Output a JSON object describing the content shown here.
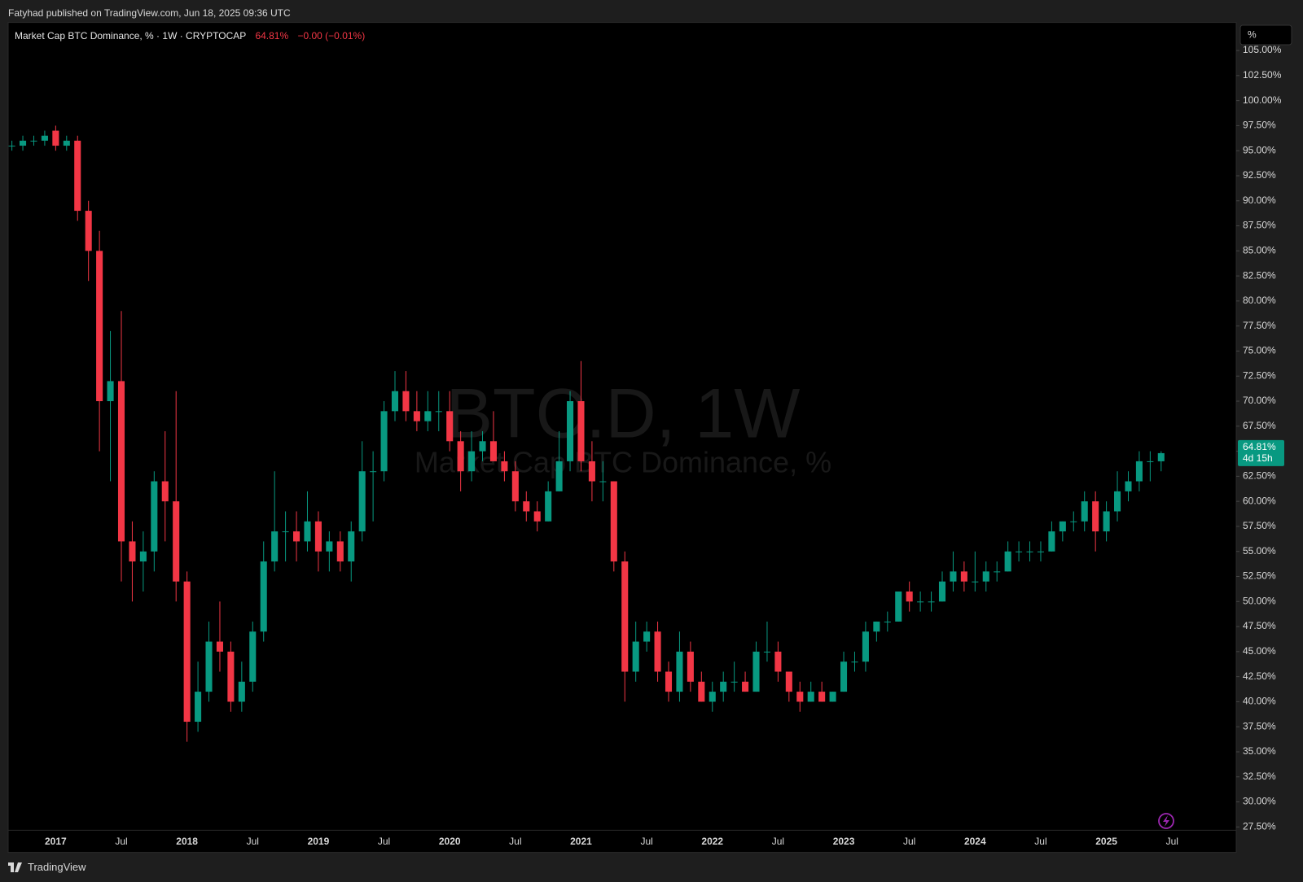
{
  "header": {
    "text": "Fatyhad published on TradingView.com, Jun 18, 2025 09:36 UTC"
  },
  "footer": {
    "brand": "TradingView"
  },
  "chart_data": {
    "type": "candlestick",
    "symbol_title": "Market Cap BTC Dominance, % · 1W · CRYPTOCAP",
    "change": "−0.00 (−0.01%)",
    "watermark": "BTC.D, 1W",
    "watermark_subtitle": "Market Cap BTC Dominance, %",
    "scale_mode": "%",
    "last_price": {
      "value": 64.81,
      "label": "64.81%"
    },
    "countdown": "4d 15h",
    "up_color": "#089981",
    "down_color": "#f23645",
    "grid": false,
    "categories": [
      null,
      null,
      null,
      null,
      "2017",
      null,
      null,
      null,
      null,
      null,
      "Jul",
      null,
      null,
      null,
      null,
      null,
      "2018",
      null,
      null,
      null,
      null,
      null,
      "Jul",
      null,
      null,
      null,
      null,
      null,
      "2019",
      null,
      null,
      null,
      null,
      null,
      "Jul",
      null,
      null,
      null,
      null,
      null,
      "2020",
      null,
      null,
      null,
      null,
      null,
      "Jul",
      null,
      null,
      null,
      null,
      null,
      "2021",
      null,
      null,
      null,
      null,
      null,
      "Jul",
      null,
      null,
      null,
      null,
      null,
      "2022",
      null,
      null,
      null,
      null,
      null,
      "Jul",
      null,
      null,
      null,
      null,
      null,
      "2023",
      null,
      null,
      null,
      null,
      null,
      "Jul",
      null,
      null,
      null,
      null,
      null,
      "2024",
      null,
      null,
      null,
      null,
      null,
      "Jul",
      null,
      null,
      null,
      null,
      null,
      "2025",
      null,
      null,
      null,
      null,
      null,
      "Jul"
    ],
    "open": [
      95.5,
      95.5,
      96,
      96,
      97,
      95.5,
      96,
      89,
      85,
      70,
      72,
      56,
      54,
      55,
      62,
      60,
      52,
      38,
      41,
      46,
      45,
      40,
      42,
      47,
      54,
      57,
      57,
      56,
      58,
      55,
      56,
      54,
      57,
      63,
      63,
      69,
      71,
      69,
      68,
      69,
      69,
      66,
      63,
      65,
      66,
      64,
      63,
      60,
      59,
      58,
      61,
      64,
      70,
      64,
      62,
      62,
      54,
      43,
      46,
      47,
      43,
      41,
      45,
      42,
      40,
      41,
      42,
      42,
      41,
      45,
      45,
      43,
      41,
      40,
      41,
      40,
      41,
      44,
      44,
      47,
      48,
      48,
      51,
      50,
      50,
      50,
      52,
      53,
      52,
      52,
      53,
      53,
      55,
      55,
      55,
      55,
      57,
      58,
      58,
      60,
      57,
      59,
      61,
      62,
      64,
      64,
      null
    ],
    "high": [
      96,
      96.5,
      96.5,
      97,
      97.5,
      96.5,
      96.5,
      90,
      87,
      77,
      79,
      58,
      57,
      63,
      67,
      71,
      53,
      44,
      48,
      50,
      46,
      44,
      48,
      56,
      63,
      59,
      59,
      61,
      59,
      57,
      57,
      58,
      66,
      65,
      70,
      73,
      73,
      71,
      71,
      71,
      71,
      67,
      67,
      67,
      69,
      65,
      64,
      61,
      60,
      62,
      67,
      71,
      74,
      66,
      64,
      62,
      55,
      48,
      48,
      48,
      44,
      47,
      46,
      43,
      42,
      43,
      44,
      43,
      46,
      48,
      46,
      43,
      42,
      42,
      42,
      41,
      45,
      45,
      48,
      48,
      49,
      51,
      52,
      51,
      51,
      53,
      55,
      54,
      55,
      54,
      54,
      56,
      56,
      56,
      56,
      58,
      58,
      59,
      61,
      61,
      60,
      63,
      63,
      65,
      65,
      65,
      null
    ],
    "low": [
      95,
      95,
      95.5,
      95.5,
      95,
      95,
      88,
      82,
      65,
      62,
      52,
      50,
      51,
      53,
      56,
      50,
      36,
      37,
      40,
      43,
      39,
      39,
      41,
      46,
      53,
      54,
      54,
      55,
      53,
      53,
      53,
      52,
      56,
      58,
      62,
      68,
      68,
      67,
      67,
      67,
      65,
      61,
      62,
      64,
      64,
      62,
      59,
      58,
      57,
      58,
      61,
      63,
      63,
      60,
      60,
      53,
      40,
      42,
      45,
      42,
      40,
      40,
      41,
      40,
      39,
      40,
      41,
      41,
      41,
      44,
      42,
      40,
      39,
      40,
      40,
      40,
      41,
      43,
      43,
      46,
      47,
      48,
      49,
      49,
      49,
      50,
      51,
      51,
      51,
      51,
      52,
      53,
      54,
      54,
      54,
      55,
      56,
      57,
      57,
      55,
      56,
      58,
      60,
      61,
      62,
      63,
      null
    ],
    "close": [
      95.5,
      96,
      96,
      96.5,
      95.5,
      96,
      89,
      85,
      70,
      72,
      56,
      54,
      55,
      62,
      60,
      52,
      38,
      41,
      46,
      45,
      40,
      42,
      47,
      54,
      57,
      57,
      56,
      58,
      55,
      56,
      54,
      57,
      63,
      63,
      69,
      71,
      69,
      68,
      69,
      69,
      66,
      63,
      65,
      66,
      64,
      63,
      60,
      59,
      58,
      61,
      64,
      70,
      64,
      62,
      62,
      54,
      43,
      46,
      47,
      43,
      41,
      45,
      42,
      40,
      41,
      42,
      42,
      41,
      45,
      45,
      43,
      41,
      40,
      41,
      40,
      41,
      44,
      44,
      47,
      48,
      48,
      51,
      50,
      50,
      50,
      52,
      53,
      52,
      52,
      53,
      53,
      55,
      55,
      55,
      55,
      57,
      58,
      58,
      60,
      57,
      59,
      61,
      62,
      64,
      64,
      64.81,
      null
    ],
    "ylim": [
      27.17,
      107.8
    ],
    "yticks": [
      {
        "value": 27.5,
        "label": "27.50%"
      },
      {
        "value": 30,
        "label": "30.00%"
      },
      {
        "value": 32.5,
        "label": "32.50%"
      },
      {
        "value": 35,
        "label": "35.00%"
      },
      {
        "value": 37.5,
        "label": "37.50%"
      },
      {
        "value": 40,
        "label": "40.00%"
      },
      {
        "value": 42.5,
        "label": "42.50%"
      },
      {
        "value": 45,
        "label": "45.00%"
      },
      {
        "value": 47.5,
        "label": "47.50%"
      },
      {
        "value": 50,
        "label": "50.00%"
      },
      {
        "value": 52.5,
        "label": "52.50%"
      },
      {
        "value": 55,
        "label": "55.00%"
      },
      {
        "value": 57.5,
        "label": "57.50%"
      },
      {
        "value": 60,
        "label": "60.00%"
      },
      {
        "value": 62.5,
        "label": "62.50%"
      },
      {
        "value": 65,
        "label": "65.00%"
      },
      {
        "value": 67.5,
        "label": "67.50%"
      },
      {
        "value": 70,
        "label": "70.00%"
      },
      {
        "value": 72.5,
        "label": "72.50%"
      },
      {
        "value": 75,
        "label": "75.00%"
      },
      {
        "value": 77.5,
        "label": "77.50%"
      },
      {
        "value": 80,
        "label": "80.00%"
      },
      {
        "value": 82.5,
        "label": "82.50%"
      },
      {
        "value": 85,
        "label": "85.00%"
      },
      {
        "value": 87.5,
        "label": "87.50%"
      },
      {
        "value": 90,
        "label": "90.00%"
      },
      {
        "value": 92.5,
        "label": "92.50%"
      },
      {
        "value": 95,
        "label": "95.00%"
      },
      {
        "value": 97.5,
        "label": "97.50%"
      },
      {
        "value": 100,
        "label": "100.00%"
      },
      {
        "value": 102.5,
        "label": "102.50%"
      },
      {
        "value": 105,
        "label": "105.00%"
      }
    ]
  }
}
